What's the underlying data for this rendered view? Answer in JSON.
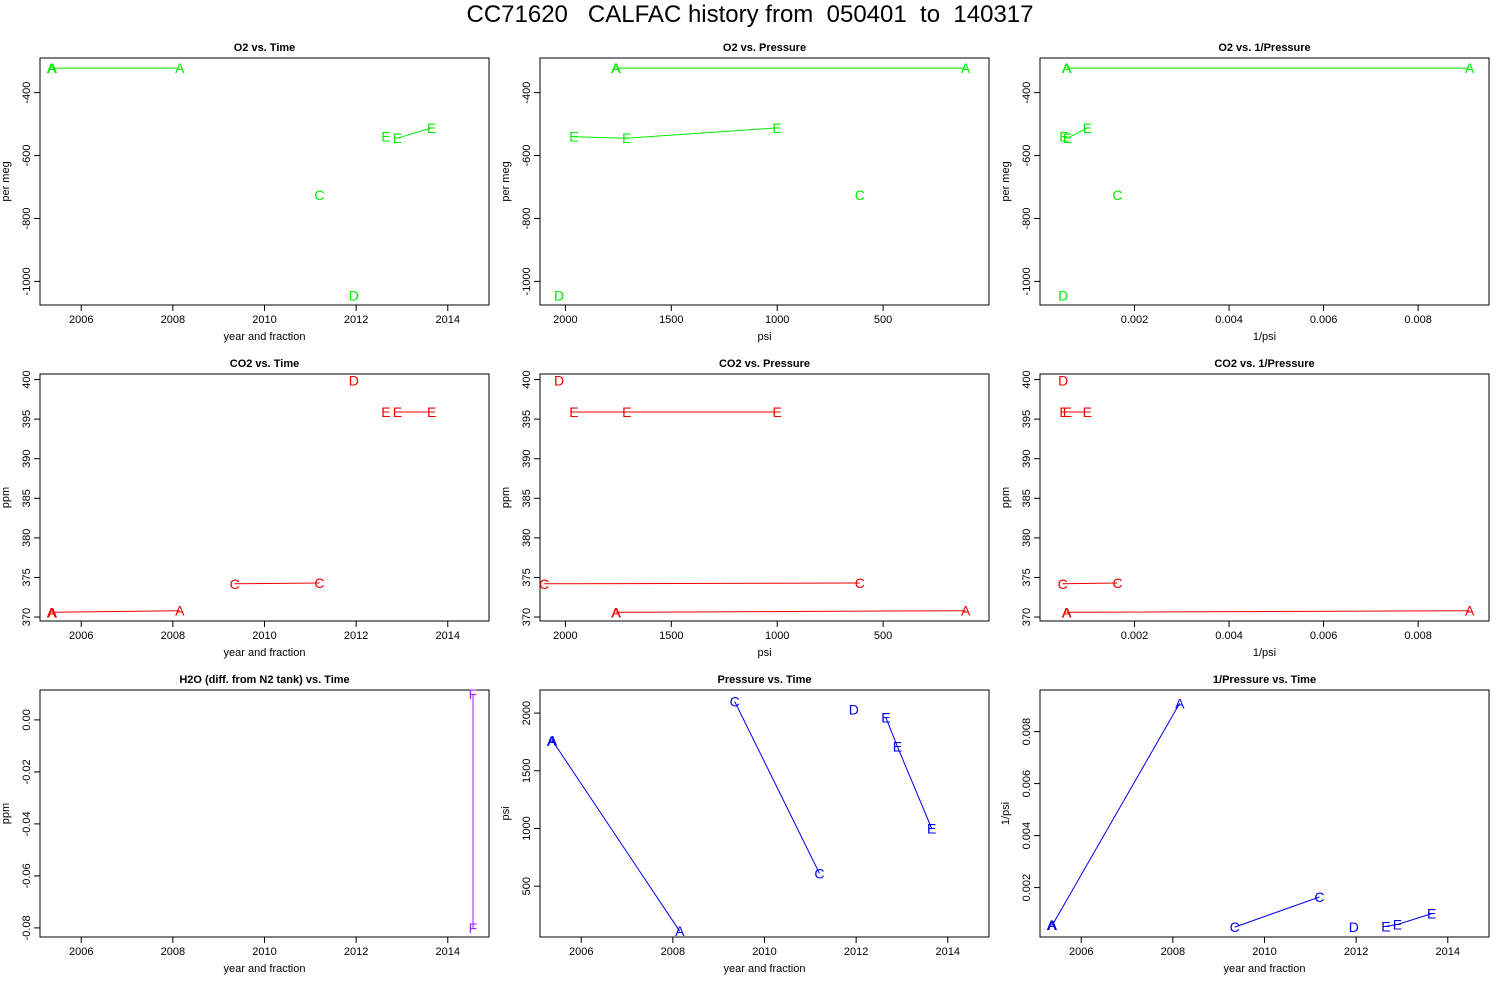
{
  "title": "CC71620   CALFAC history from  050401  to  140317",
  "chart_data": [
    {
      "type": "scatter",
      "title": "O2 vs. Time",
      "xlabel": "year and fraction",
      "ylabel": "per meg",
      "xlim": [
        2005.1,
        2014.9
      ],
      "ylim": [
        -1075,
        -290
      ],
      "xticks": [
        2006,
        2008,
        2010,
        2012,
        2014
      ],
      "yticks": [
        -400,
        -600,
        -800,
        -1000
      ],
      "color": "#00ee00",
      "points": [
        {
          "x": 2005.35,
          "y": -322,
          "label": "A"
        },
        {
          "x": 2005.37,
          "y": -322,
          "label": "A"
        },
        {
          "x": 2008.15,
          "y": -322,
          "label": "A"
        },
        {
          "x": 2011.2,
          "y": -725,
          "label": "C"
        },
        {
          "x": 2011.95,
          "y": -1045,
          "label": "D"
        },
        {
          "x": 2012.65,
          "y": -540,
          "label": "E"
        },
        {
          "x": 2012.9,
          "y": -545,
          "label": "E"
        },
        {
          "x": 2013.65,
          "y": -512,
          "label": "E"
        }
      ],
      "lines": [
        [
          0,
          2
        ],
        [
          6,
          7
        ]
      ]
    },
    {
      "type": "scatter",
      "title": "O2 vs. Pressure",
      "xlabel": "psi",
      "ylabel": "per meg",
      "xlim": [
        2120,
        0
      ],
      "ylim": [
        -1075,
        -290
      ],
      "xticks": [
        2000,
        1500,
        1000,
        500
      ],
      "yticks": [
        -400,
        -600,
        -800,
        -1000
      ],
      "color": "#00ee00",
      "points": [
        {
          "x": 1760,
          "y": -322,
          "label": "A"
        },
        {
          "x": 1762,
          "y": -322,
          "label": "A"
        },
        {
          "x": 110,
          "y": -322,
          "label": "A"
        },
        {
          "x": 610,
          "y": -725,
          "label": "C"
        },
        {
          "x": 2030,
          "y": -1045,
          "label": "D"
        },
        {
          "x": 1960,
          "y": -540,
          "label": "E"
        },
        {
          "x": 1710,
          "y": -545,
          "label": "E"
        },
        {
          "x": 1000,
          "y": -512,
          "label": "E"
        }
      ],
      "lines": [
        [
          0,
          2
        ],
        [
          5,
          6
        ],
        [
          6,
          7
        ]
      ]
    },
    {
      "type": "scatter",
      "title": "O2 vs. 1/Pressure",
      "xlabel": "1/psi",
      "ylabel": "per meg",
      "xlim": [
        0,
        0.0095
      ],
      "ylim": [
        -1075,
        -290
      ],
      "xticks": [
        0.002,
        0.004,
        0.006,
        0.008
      ],
      "yticks": [
        -400,
        -600,
        -800,
        -1000
      ],
      "color": "#00ee00",
      "points": [
        {
          "x": 0.00057,
          "y": -322,
          "label": "A"
        },
        {
          "x": 0.00056,
          "y": -322,
          "label": "A"
        },
        {
          "x": 0.00909,
          "y": -322,
          "label": "A"
        },
        {
          "x": 0.00164,
          "y": -725,
          "label": "C"
        },
        {
          "x": 0.00049,
          "y": -1045,
          "label": "D"
        },
        {
          "x": 0.00051,
          "y": -540,
          "label": "E"
        },
        {
          "x": 0.00058,
          "y": -545,
          "label": "E"
        },
        {
          "x": 0.001,
          "y": -512,
          "label": "E"
        }
      ],
      "lines": [
        [
          0,
          2
        ],
        [
          5,
          6
        ],
        [
          6,
          7
        ]
      ]
    },
    {
      "type": "scatter",
      "title": "CO2 vs. Time",
      "xlabel": "year and fraction",
      "ylabel": "ppm",
      "xlim": [
        2005.1,
        2014.9
      ],
      "ylim": [
        369.5,
        400.7
      ],
      "xticks": [
        2006,
        2008,
        2010,
        2012,
        2014
      ],
      "yticks": [
        370,
        375,
        380,
        385,
        390,
        395,
        400
      ],
      "color": "#ee0000",
      "points": [
        {
          "x": 2005.35,
          "y": 370.6,
          "label": "A"
        },
        {
          "x": 2005.37,
          "y": 370.6,
          "label": "A"
        },
        {
          "x": 2008.15,
          "y": 370.8,
          "label": "A"
        },
        {
          "x": 2009.35,
          "y": 374.2,
          "label": "C"
        },
        {
          "x": 2011.2,
          "y": 374.3,
          "label": "C"
        },
        {
          "x": 2011.95,
          "y": 399.9,
          "label": "D"
        },
        {
          "x": 2012.65,
          "y": 395.9,
          "label": "E"
        },
        {
          "x": 2012.9,
          "y": 395.9,
          "label": "E"
        },
        {
          "x": 2013.65,
          "y": 395.9,
          "label": "E"
        }
      ],
      "lines": [
        [
          0,
          2
        ],
        [
          3,
          4
        ],
        [
          7,
          8
        ]
      ]
    },
    {
      "type": "scatter",
      "title": "CO2 vs. Pressure",
      "xlabel": "psi",
      "ylabel": "ppm",
      "xlim": [
        2120,
        0
      ],
      "ylim": [
        369.5,
        400.7
      ],
      "xticks": [
        2000,
        1500,
        1000,
        500
      ],
      "yticks": [
        370,
        375,
        380,
        385,
        390,
        395,
        400
      ],
      "color": "#ee0000",
      "points": [
        {
          "x": 1760,
          "y": 370.6,
          "label": "A"
        },
        {
          "x": 1762,
          "y": 370.6,
          "label": "A"
        },
        {
          "x": 110,
          "y": 370.8,
          "label": "A"
        },
        {
          "x": 2100,
          "y": 374.2,
          "label": "C"
        },
        {
          "x": 610,
          "y": 374.3,
          "label": "C"
        },
        {
          "x": 2030,
          "y": 399.9,
          "label": "D"
        },
        {
          "x": 1960,
          "y": 395.9,
          "label": "E"
        },
        {
          "x": 1710,
          "y": 395.9,
          "label": "E"
        },
        {
          "x": 1000,
          "y": 395.9,
          "label": "E"
        }
      ],
      "lines": [
        [
          0,
          2
        ],
        [
          3,
          4
        ],
        [
          6,
          8
        ]
      ]
    },
    {
      "type": "scatter",
      "title": "CO2 vs. 1/Pressure",
      "xlabel": "1/psi",
      "ylabel": "ppm",
      "xlim": [
        0,
        0.0095
      ],
      "ylim": [
        369.5,
        400.7
      ],
      "xticks": [
        0.002,
        0.004,
        0.006,
        0.008
      ],
      "yticks": [
        370,
        375,
        380,
        385,
        390,
        395,
        400
      ],
      "color": "#ee0000",
      "points": [
        {
          "x": 0.00057,
          "y": 370.6,
          "label": "A"
        },
        {
          "x": 0.00056,
          "y": 370.6,
          "label": "A"
        },
        {
          "x": 0.00909,
          "y": 370.8,
          "label": "A"
        },
        {
          "x": 0.00048,
          "y": 374.2,
          "label": "C"
        },
        {
          "x": 0.00164,
          "y": 374.3,
          "label": "C"
        },
        {
          "x": 0.00049,
          "y": 399.9,
          "label": "D"
        },
        {
          "x": 0.00051,
          "y": 395.9,
          "label": "E"
        },
        {
          "x": 0.00058,
          "y": 395.9,
          "label": "E"
        },
        {
          "x": 0.001,
          "y": 395.9,
          "label": "E"
        }
      ],
      "lines": [
        [
          0,
          2
        ],
        [
          3,
          4
        ],
        [
          6,
          8
        ]
      ]
    },
    {
      "type": "scatter",
      "title": "H2O (diff. from N2 tank) vs. Time",
      "xlabel": "year and fraction",
      "ylabel": "ppm",
      "xlim": [
        2005.1,
        2014.9
      ],
      "ylim": [
        -0.0835,
        0.0115
      ],
      "xticks": [
        2006,
        2008,
        2010,
        2012,
        2014
      ],
      "yticks": [
        0.0,
        -0.02,
        -0.04,
        -0.06,
        -0.08
      ],
      "ytick_labels": [
        "0.00",
        "-0.02",
        "-0.04",
        "-0.06",
        "-0.08"
      ],
      "color": "#a020f0",
      "points": [
        {
          "x": 2014.55,
          "y": 0.01,
          "label": "F"
        },
        {
          "x": 2014.55,
          "y": -0.08,
          "label": "F"
        }
      ],
      "lines": [
        [
          0,
          1
        ]
      ]
    },
    {
      "type": "scatter",
      "title": "Pressure vs. Time",
      "xlabel": "year and fraction",
      "ylabel": "psi",
      "xlim": [
        2005.1,
        2014.9
      ],
      "ylim": [
        60,
        2200
      ],
      "xticks": [
        2006,
        2008,
        2010,
        2012,
        2014
      ],
      "yticks": [
        500,
        1000,
        1500,
        2000
      ],
      "color": "#0000ee",
      "points": [
        {
          "x": 2005.35,
          "y": 1760,
          "label": "A"
        },
        {
          "x": 2005.37,
          "y": 1762,
          "label": "A"
        },
        {
          "x": 2008.15,
          "y": 110,
          "label": "A"
        },
        {
          "x": 2009.35,
          "y": 2100,
          "label": "C"
        },
        {
          "x": 2011.2,
          "y": 610,
          "label": "C"
        },
        {
          "x": 2011.95,
          "y": 2030,
          "label": "D"
        },
        {
          "x": 2012.65,
          "y": 1960,
          "label": "E"
        },
        {
          "x": 2012.9,
          "y": 1710,
          "label": "E"
        },
        {
          "x": 2013.65,
          "y": 1000,
          "label": "E"
        }
      ],
      "lines": [
        [
          0,
          2
        ],
        [
          3,
          4
        ],
        [
          6,
          8
        ]
      ]
    },
    {
      "type": "scatter",
      "title": "1/Pressure vs. Time",
      "xlabel": "year and fraction",
      "ylabel": "1/psi",
      "xlim": [
        2005.1,
        2014.9
      ],
      "ylim": [
        0.0001,
        0.0096
      ],
      "xticks": [
        2006,
        2008,
        2010,
        2012,
        2014
      ],
      "yticks": [
        0.002,
        0.004,
        0.006,
        0.008
      ],
      "color": "#0000ee",
      "points": [
        {
          "x": 2005.35,
          "y": 0.00057,
          "label": "A"
        },
        {
          "x": 2005.37,
          "y": 0.00056,
          "label": "A"
        },
        {
          "x": 2008.15,
          "y": 0.00909,
          "label": "A"
        },
        {
          "x": 2009.35,
          "y": 0.00048,
          "label": "C"
        },
        {
          "x": 2011.2,
          "y": 0.00164,
          "label": "C"
        },
        {
          "x": 2011.95,
          "y": 0.00049,
          "label": "D"
        },
        {
          "x": 2012.65,
          "y": 0.00051,
          "label": "E"
        },
        {
          "x": 2012.9,
          "y": 0.00058,
          "label": "E"
        },
        {
          "x": 2013.65,
          "y": 0.001,
          "label": "E"
        }
      ],
      "lines": [
        [
          0,
          2
        ],
        [
          3,
          4
        ],
        [
          6,
          8
        ]
      ]
    }
  ]
}
